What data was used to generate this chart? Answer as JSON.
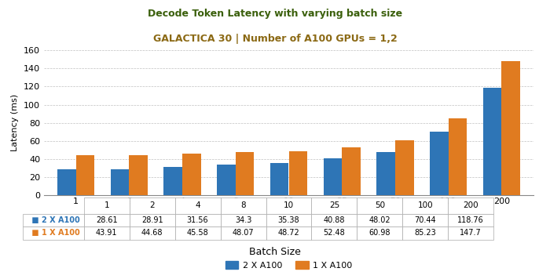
{
  "title_line1": "Decode Token Latency with varying batch size",
  "title_line2": "GALACTICA 30 | Number of A100 GPUs = 1,2",
  "title_line1_color": "#3a5f0b",
  "title_line2_color": "#8B6914",
  "categories": [
    "1",
    "2",
    "4",
    "8",
    "10",
    "25",
    "50",
    "100",
    "200"
  ],
  "vals_2x": [
    28.61,
    28.91,
    31.56,
    34.3,
    35.38,
    40.88,
    48.02,
    70.44,
    118.76
  ],
  "vals_1x": [
    43.91,
    44.68,
    45.58,
    48.07,
    48.72,
    52.48,
    60.98,
    85.23,
    147.7
  ],
  "color_2x": "#2e75b6",
  "color_1x": "#e07b20",
  "xlabel": "Batch Size",
  "ylabel": "Latency (ms)",
  "ylim": [
    0,
    160
  ],
  "yticks": [
    0,
    20,
    40,
    60,
    80,
    100,
    120,
    140,
    160
  ],
  "bar_width": 0.35,
  "background_color": "#ffffff",
  "grid_color": "#c0c0c0",
  "label_2x": "2 X A100",
  "label_1x": "1 X A100"
}
